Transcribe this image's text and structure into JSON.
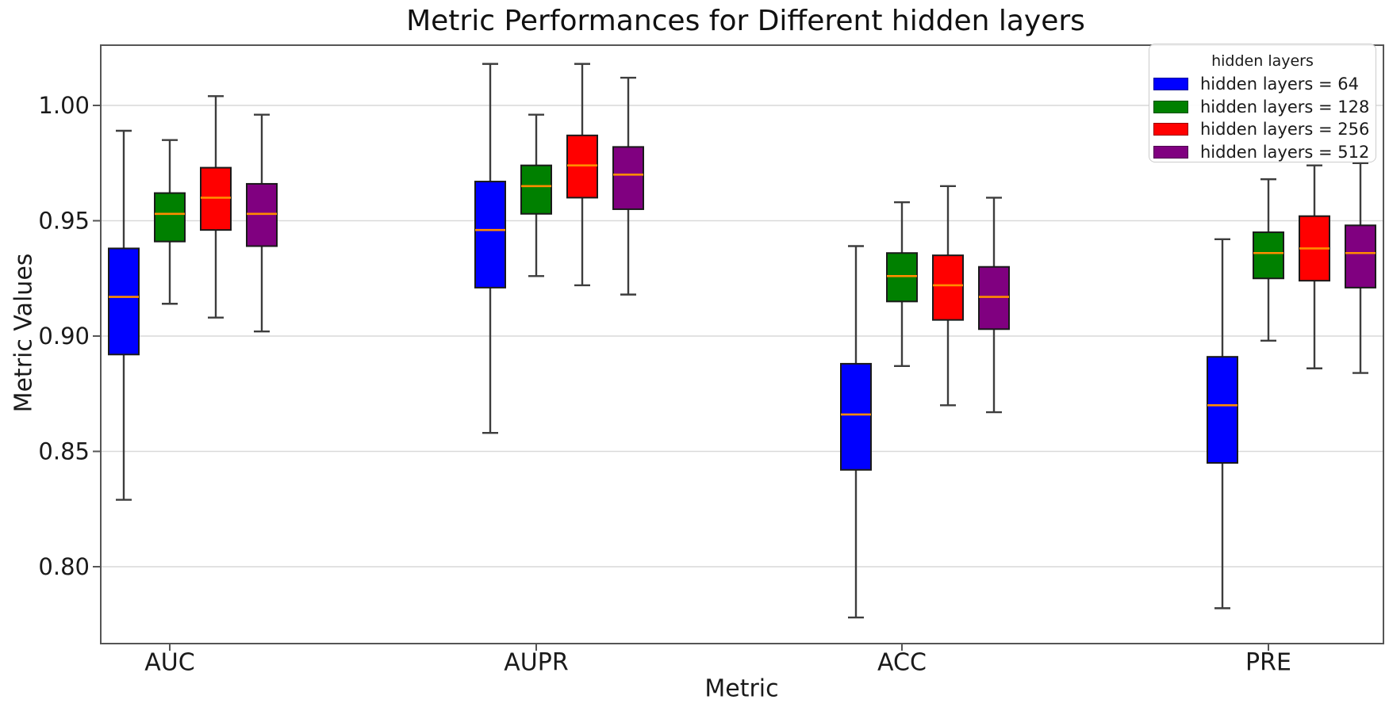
{
  "chart_data": {
    "type": "boxplot",
    "title": "Metric Performances for Different hidden layers",
    "xlabel": "Metric",
    "ylabel": "Metric Values",
    "categories": [
      "AUC",
      "AUPR",
      "ACC",
      "PRE"
    ],
    "y_axis": {
      "ticks": [
        {
          "label": "1.00",
          "value": 1.0
        },
        {
          "label": "0.95",
          "value": 0.95
        },
        {
          "label": "0.90",
          "value": 0.9
        },
        {
          "label": "0.85",
          "value": 0.85
        },
        {
          "label": "0.80",
          "value": 0.8
        }
      ],
      "range": [
        0.767,
        1.026
      ]
    },
    "grid": "horizontal-major",
    "legend": {
      "title": "hidden layers",
      "position": "upper-right"
    },
    "series": [
      {
        "name": "hidden layers = 64",
        "color": "#0000ff",
        "stats": [
          {
            "category": "AUC",
            "whisker_low": 0.829,
            "q1": 0.892,
            "median": 0.917,
            "q3": 0.938,
            "whisker_high": 0.989
          },
          {
            "category": "AUPR",
            "whisker_low": 0.858,
            "q1": 0.921,
            "median": 0.946,
            "q3": 0.967,
            "whisker_high": 1.018
          },
          {
            "category": "ACC",
            "whisker_low": 0.778,
            "q1": 0.842,
            "median": 0.866,
            "q3": 0.888,
            "whisker_high": 0.939
          },
          {
            "category": "PRE",
            "whisker_low": 0.782,
            "q1": 0.845,
            "median": 0.87,
            "q3": 0.891,
            "whisker_high": 0.942
          }
        ]
      },
      {
        "name": "hidden layers = 128",
        "color": "#008000",
        "stats": [
          {
            "category": "AUC",
            "whisker_low": 0.914,
            "q1": 0.941,
            "median": 0.953,
            "q3": 0.962,
            "whisker_high": 0.985
          },
          {
            "category": "AUPR",
            "whisker_low": 0.926,
            "q1": 0.953,
            "median": 0.965,
            "q3": 0.974,
            "whisker_high": 0.996
          },
          {
            "category": "ACC",
            "whisker_low": 0.887,
            "q1": 0.915,
            "median": 0.926,
            "q3": 0.936,
            "whisker_high": 0.958
          },
          {
            "category": "PRE",
            "whisker_low": 0.898,
            "q1": 0.925,
            "median": 0.936,
            "q3": 0.945,
            "whisker_high": 0.968
          }
        ]
      },
      {
        "name": "hidden layers = 256",
        "color": "#ff0000",
        "stats": [
          {
            "category": "AUC",
            "whisker_low": 0.908,
            "q1": 0.946,
            "median": 0.96,
            "q3": 0.973,
            "whisker_high": 1.004
          },
          {
            "category": "AUPR",
            "whisker_low": 0.922,
            "q1": 0.96,
            "median": 0.974,
            "q3": 0.987,
            "whisker_high": 1.018
          },
          {
            "category": "ACC",
            "whisker_low": 0.87,
            "q1": 0.907,
            "median": 0.922,
            "q3": 0.935,
            "whisker_high": 0.965
          },
          {
            "category": "PRE",
            "whisker_low": 0.886,
            "q1": 0.924,
            "median": 0.938,
            "q3": 0.952,
            "whisker_high": 0.974
          }
        ]
      },
      {
        "name": "hidden layers = 512",
        "color": "#800080",
        "stats": [
          {
            "category": "AUC",
            "whisker_low": 0.902,
            "q1": 0.939,
            "median": 0.953,
            "q3": 0.966,
            "whisker_high": 0.996
          },
          {
            "category": "AUPR",
            "whisker_low": 0.918,
            "q1": 0.955,
            "median": 0.97,
            "q3": 0.982,
            "whisker_high": 1.012
          },
          {
            "category": "ACC",
            "whisker_low": 0.867,
            "q1": 0.903,
            "median": 0.917,
            "q3": 0.93,
            "whisker_high": 0.96
          },
          {
            "category": "PRE",
            "whisker_low": 0.884,
            "q1": 0.921,
            "median": 0.936,
            "q3": 0.948,
            "whisker_high": 0.975
          }
        ]
      }
    ],
    "style": {
      "median_color": "#ff8c00",
      "grid_color": "#d9d9d9",
      "spine_color": "#555555",
      "whisker_color": "#3d3d3d",
      "box_edge_color": "#1a1a1a",
      "tick_text_color": "#1a1a1a",
      "background": "#ffffff"
    }
  }
}
